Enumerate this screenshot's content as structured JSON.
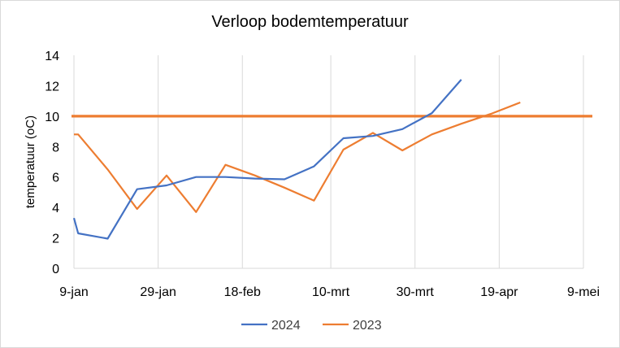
{
  "chart_data": {
    "type": "line",
    "title": "Verloop bodemtemperatuur",
    "ylabel": "temperatuur (oC)",
    "xlabel": "",
    "x_type": "date",
    "xlim": [
      "2024-01-09",
      "2024-05-09"
    ],
    "ylim": [
      0,
      14
    ],
    "y_ticks": [
      0,
      2,
      4,
      6,
      8,
      10,
      12,
      14
    ],
    "x_ticks": [
      {
        "date": "2024-01-09",
        "label": "9-jan"
      },
      {
        "date": "2024-01-29",
        "label": "29-jan"
      },
      {
        "date": "2024-02-18",
        "label": "18-feb"
      },
      {
        "date": "2024-03-10",
        "label": "10-mrt"
      },
      {
        "date": "2024-03-30",
        "label": "30-mrt"
      },
      {
        "date": "2024-04-19",
        "label": "19-apr"
      },
      {
        "date": "2024-05-09",
        "label": "9-mei"
      }
    ],
    "grid": "vertical",
    "legend_position": "bottom",
    "series": [
      {
        "name": "2024",
        "color": "#4472C4",
        "points": [
          {
            "x": "2024-01-09",
            "y": 3.3
          },
          {
            "x": "2024-01-10",
            "y": 2.3
          },
          {
            "x": "2024-01-17",
            "y": 1.95
          },
          {
            "x": "2024-01-24",
            "y": 5.2
          },
          {
            "x": "2024-01-31",
            "y": 5.45
          },
          {
            "x": "2024-02-07",
            "y": 6.0
          },
          {
            "x": "2024-02-14",
            "y": 6.0
          },
          {
            "x": "2024-02-21",
            "y": 5.9
          },
          {
            "x": "2024-02-28",
            "y": 5.85
          },
          {
            "x": "2024-03-06",
            "y": 6.7
          },
          {
            "x": "2024-03-13",
            "y": 8.55
          },
          {
            "x": "2024-03-20",
            "y": 8.7
          },
          {
            "x": "2024-03-27",
            "y": 9.15
          },
          {
            "x": "2024-04-03",
            "y": 10.2
          },
          {
            "x": "2024-04-10",
            "y": 12.4
          }
        ]
      },
      {
        "name": "2023",
        "color": "#ED7D31",
        "points": [
          {
            "x": "2024-01-09",
            "y": 8.8
          },
          {
            "x": "2024-01-10",
            "y": 8.8
          },
          {
            "x": "2024-01-17",
            "y": 6.5
          },
          {
            "x": "2024-01-24",
            "y": 3.9
          },
          {
            "x": "2024-01-31",
            "y": 6.1
          },
          {
            "x": "2024-02-07",
            "y": 3.7
          },
          {
            "x": "2024-02-14",
            "y": 6.8
          },
          {
            "x": "2024-02-21",
            "y": 6.1
          },
          {
            "x": "2024-02-28",
            "y": 5.3
          },
          {
            "x": "2024-03-06",
            "y": 4.45
          },
          {
            "x": "2024-03-13",
            "y": 7.8
          },
          {
            "x": "2024-03-20",
            "y": 8.9
          },
          {
            "x": "2024-03-27",
            "y": 7.75
          },
          {
            "x": "2024-04-03",
            "y": 8.8
          },
          {
            "x": "2024-04-10",
            "y": 9.5
          },
          {
            "x": "2024-04-17",
            "y": 10.15
          },
          {
            "x": "2024-04-24",
            "y": 10.9
          }
        ]
      }
    ],
    "reference_line": {
      "y": 10.0,
      "color": "#ED7D31"
    },
    "colors": {
      "axis": "#d9d9d9",
      "grid": "#d9d9d9",
      "text": "#000000",
      "legend_text": "#404040"
    }
  }
}
